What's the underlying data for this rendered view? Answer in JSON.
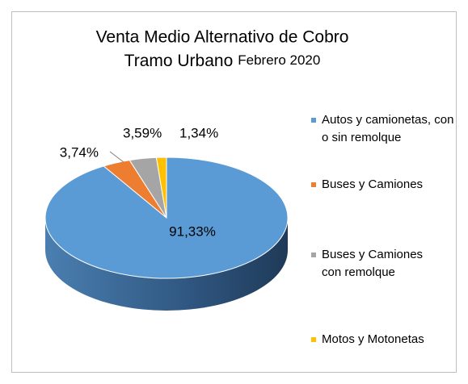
{
  "chart_data": {
    "type": "pie3d",
    "title": "Venta Medio Alternativo de Cobro",
    "subtitle": "Tramo Urbano",
    "period": "Febrero 2020",
    "categories": [
      "Autos y camionetas, con o sin remolque",
      "Buses y Camiones",
      "Buses y Camiones con remolque",
      "Motos y Motonetas"
    ],
    "values": [
      91.33,
      3.74,
      3.59,
      1.34
    ],
    "value_labels": [
      "91,33%",
      "3,74%",
      "3,59%",
      "1,34%"
    ],
    "colors": [
      "#5b9bd5",
      "#ed7d31",
      "#a5a5a5",
      "#ffc000"
    ],
    "legend": "right"
  }
}
